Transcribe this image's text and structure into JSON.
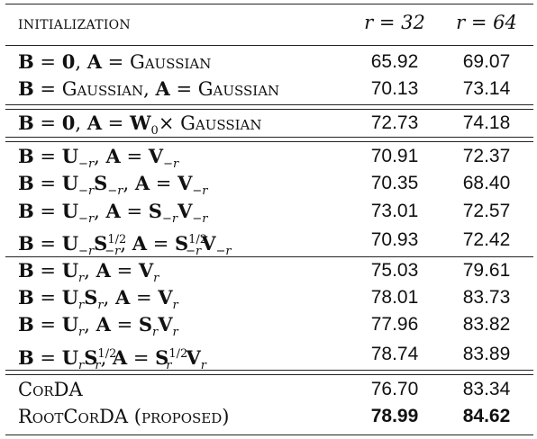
{
  "header": {
    "col_init": "initialization",
    "col_r32": "r = 32",
    "col_r64": "r = 64"
  },
  "rows": [
    {
      "label": "B = 0, A = Gaussian",
      "r32": "65.92",
      "r64": "69.07"
    },
    {
      "label": "B = Gaussian, A = Gaussian",
      "r32": "70.13",
      "r64": "73.14"
    },
    {
      "label": "B = 0, A = W0× Gaussian",
      "r32": "72.73",
      "r64": "74.18"
    },
    {
      "label": "B = U−r, A = V−r",
      "r32": "70.91",
      "r64": "72.37"
    },
    {
      "label": "B = U−rS−r, A = V−r",
      "r32": "70.35",
      "r64": "68.40"
    },
    {
      "label": "B = U−r, A = S−rV−r",
      "r32": "73.01",
      "r64": "72.57"
    },
    {
      "label": "B = U−rS−r^1/2, A = S−r^1/2V−r",
      "r32": "70.93",
      "r64": "72.42"
    },
    {
      "label": "B = Ur, A = Vr",
      "r32": "75.03",
      "r64": "79.61"
    },
    {
      "label": "B = UrSr, A = Vr",
      "r32": "78.01",
      "r64": "83.73"
    },
    {
      "label": "B = Ur, A = SrVr",
      "r32": "77.96",
      "r64": "83.82"
    },
    {
      "label": "B = UrSr^1/2, A = Sr^1/2Vr",
      "r32": "78.74",
      "r64": "83.89"
    },
    {
      "label": "CorDA",
      "r32": "76.70",
      "r64": "83.34"
    },
    {
      "label": "RootCorDA (proposed)",
      "r32": "78.99",
      "r64": "84.62"
    }
  ]
}
